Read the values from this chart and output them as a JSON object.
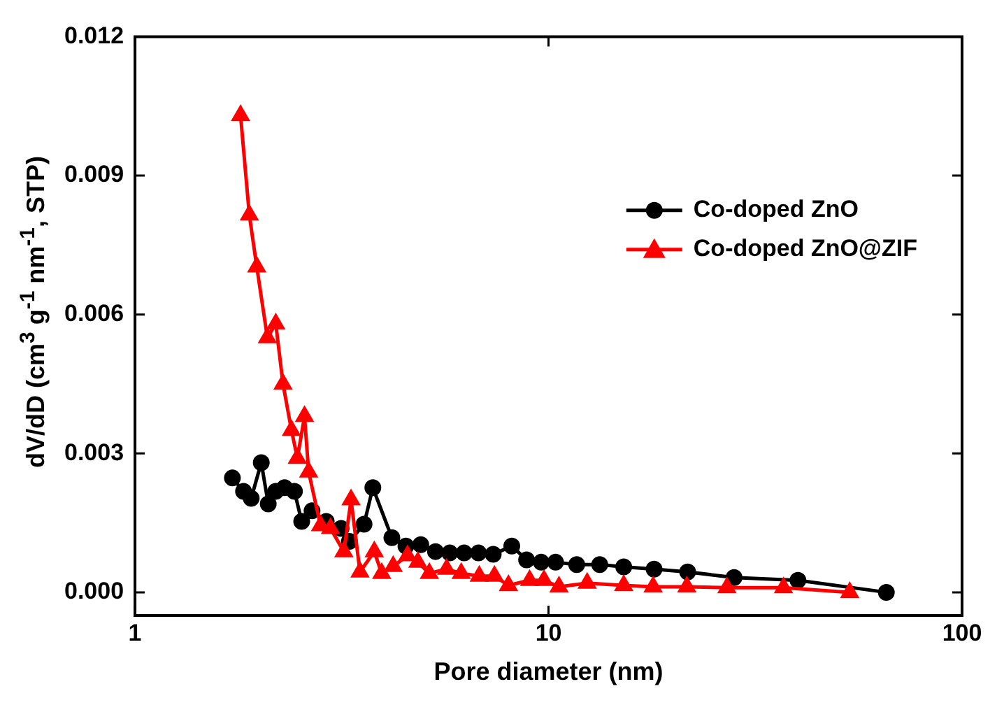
{
  "chart_data": {
    "type": "line",
    "xlabel": "Pore diameter (nm)",
    "ylabel": "dV/dD (cm$^{3}$ g$^{-1}$ nm$^{-1}$, STP)",
    "log": "x",
    "xlim": [
      1,
      100
    ],
    "xticks": [
      1,
      10,
      100
    ],
    "ylim": [
      -0.0005,
      0.012
    ],
    "yticks": [
      {
        "value": 0,
        "label": "0.000"
      },
      {
        "value": 0.003,
        "label": "0.003"
      },
      {
        "value": 0.006,
        "label": "0.006"
      },
      {
        "value": 0.009,
        "label": "0.009"
      },
      {
        "value": 0.012,
        "label": "0.012"
      }
    ],
    "grid": false,
    "legend": "top right",
    "line_style": "solid",
    "series": [
      {
        "name": "Co-doped ZnO",
        "color": "#000000",
        "marker": "circle",
        "x": [
          1.72,
          1.83,
          1.91,
          2.02,
          2.1,
          2.19,
          2.3,
          2.43,
          2.53,
          2.68,
          2.9,
          3.15,
          3.3,
          3.58,
          3.76,
          4.18,
          4.52,
          4.91,
          5.33,
          5.77,
          6.25,
          6.77,
          7.35,
          8.15,
          8.85,
          9.6,
          10.4,
          11.7,
          13.3,
          15.2,
          18,
          21.7,
          28.1,
          40.1,
          65.6
        ],
        "values": [
          0.00247,
          0.00218,
          0.00203,
          0.0028,
          0.00191,
          0.00218,
          0.00226,
          0.00218,
          0.00153,
          0.00176,
          0.00153,
          0.00138,
          0.0011,
          0.00147,
          0.00226,
          0.00118,
          0.001,
          0.00103,
          0.00088,
          0.00085,
          0.00085,
          0.00085,
          0.00082,
          0.001,
          0.0007,
          0.00065,
          0.00065,
          0.0006,
          0.0006,
          0.00055,
          0.0005,
          0.00044,
          0.00032,
          0.00026,
          0
        ]
      },
      {
        "name": "Co-doped ZnO@ZIF",
        "color": "#ff0000",
        "marker": "triangle",
        "x": [
          1.8,
          1.89,
          1.97,
          2.09,
          2.19,
          2.28,
          2.39,
          2.47,
          2.57,
          2.63,
          2.81,
          2.97,
          3.2,
          3.33,
          3.5,
          3.79,
          3.95,
          4.21,
          4.56,
          4.83,
          5.15,
          5.67,
          6.15,
          6.8,
          7.4,
          8,
          9,
          9.75,
          10.6,
          12.4,
          15.2,
          17.9,
          21.6,
          27,
          37,
          53.5
        ],
        "values": [
          0.0103,
          0.00815,
          0.00703,
          0.0055,
          0.0058,
          0.0045,
          0.0035,
          0.0029,
          0.0038,
          0.0026,
          0.00144,
          0.00138,
          0.00088,
          0.002,
          0.00044,
          0.00088,
          0.00041,
          0.00056,
          0.00079,
          0.00065,
          0.00041,
          0.0005,
          0.00041,
          0.00035,
          0.00035,
          0.00015,
          0.00026,
          0.00026,
          0.00012,
          0.0002,
          0.00015,
          0.00012,
          0.00012,
          0.0001,
          0.0001,
          0
        ]
      }
    ]
  }
}
